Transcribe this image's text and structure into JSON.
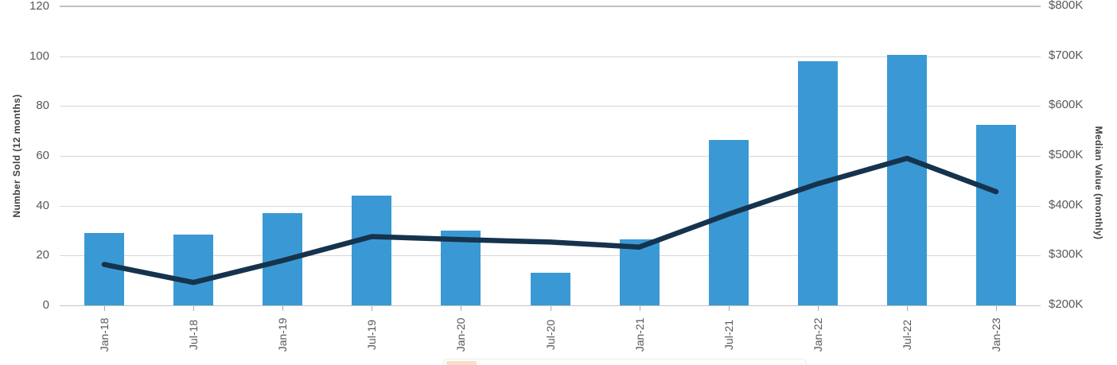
{
  "chart_data": {
    "type": "combo (bar + line, dual y-axis)",
    "categories": [
      "Jan-18",
      "Jul-18",
      "Jan-19",
      "Jul-19",
      "Jan-20",
      "Jul-20",
      "Jan-21",
      "Jul-21",
      "Jan-22",
      "Jul-22",
      "Jan-23"
    ],
    "series": [
      {
        "name": "Number Sold (12 months)",
        "type": "bar",
        "y_axis": "left",
        "color": "#3A99D4",
        "values": [
          29,
          28.5,
          37,
          44,
          30,
          13,
          26.5,
          66.5,
          98,
          100.5,
          72.5
        ]
      },
      {
        "name": "Median Value (monthly)",
        "type": "line",
        "y_axis": "right",
        "color": "#16334E",
        "values_usd_k": [
          282,
          246,
          290,
          338,
          332,
          327,
          317,
          383,
          444,
          495,
          428
        ]
      }
    ],
    "left_axis": {
      "title": "Number Sold (12 months)",
      "min": 0,
      "max": 120,
      "tick_labels": [
        "0",
        "20",
        "40",
        "60",
        "80",
        "100",
        "120"
      ]
    },
    "right_axis": {
      "title": "Median Value (monthly)",
      "min_usd_k": 200,
      "max_usd_k": 800,
      "tick_labels": [
        "$200K",
        "$300K",
        "$400K",
        "$500K",
        "$600K",
        "$700K",
        "$800K"
      ]
    },
    "grid": true,
    "legend_position": "bottom, mostly cut off at screenshot edge"
  },
  "colors": {
    "bar": "#3A99D4",
    "line": "#16334E",
    "gridline": "#d7d7d7",
    "gridline_top": "#bfbfbf",
    "axis_line": "#c3c3c3",
    "tick_text": "#595959",
    "title_text": "#404040"
  }
}
